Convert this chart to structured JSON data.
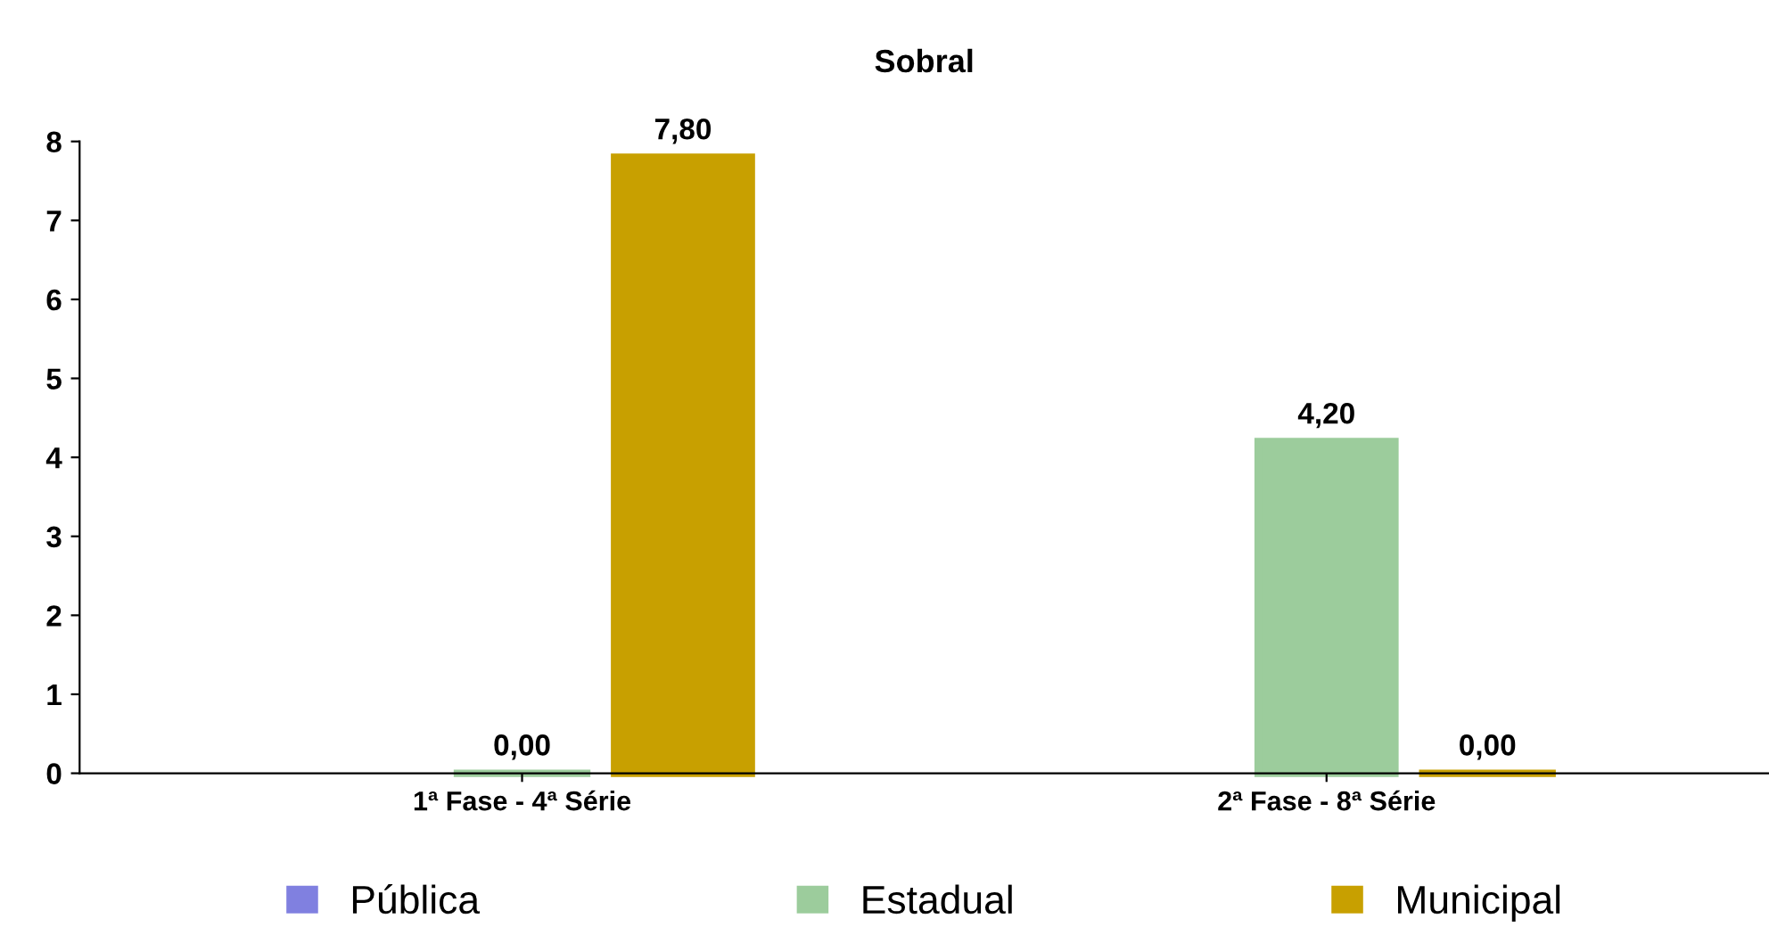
{
  "chart_data": {
    "type": "bar",
    "title": "Sobral",
    "categories": [
      "1ª Fase - 4ª Série",
      "2ª Fase - 8ª Série"
    ],
    "series": [
      {
        "name": "Pública",
        "color": "#8080e0",
        "values": [
          null,
          null
        ]
      },
      {
        "name": "Estadual",
        "color": "#9ccc9c",
        "values": [
          0,
          4.2
        ],
        "value_labels": [
          "0,00",
          "4,20"
        ]
      },
      {
        "name": "Municipal",
        "color": "#c8a000",
        "values": [
          7.8,
          0
        ],
        "value_labels": [
          "7,80",
          "0,00"
        ]
      }
    ],
    "ylim": [
      0,
      8
    ],
    "yticks": [
      0,
      1,
      2,
      3,
      4,
      5,
      6,
      7,
      8
    ],
    "grid": false,
    "legend": "bottom"
  }
}
